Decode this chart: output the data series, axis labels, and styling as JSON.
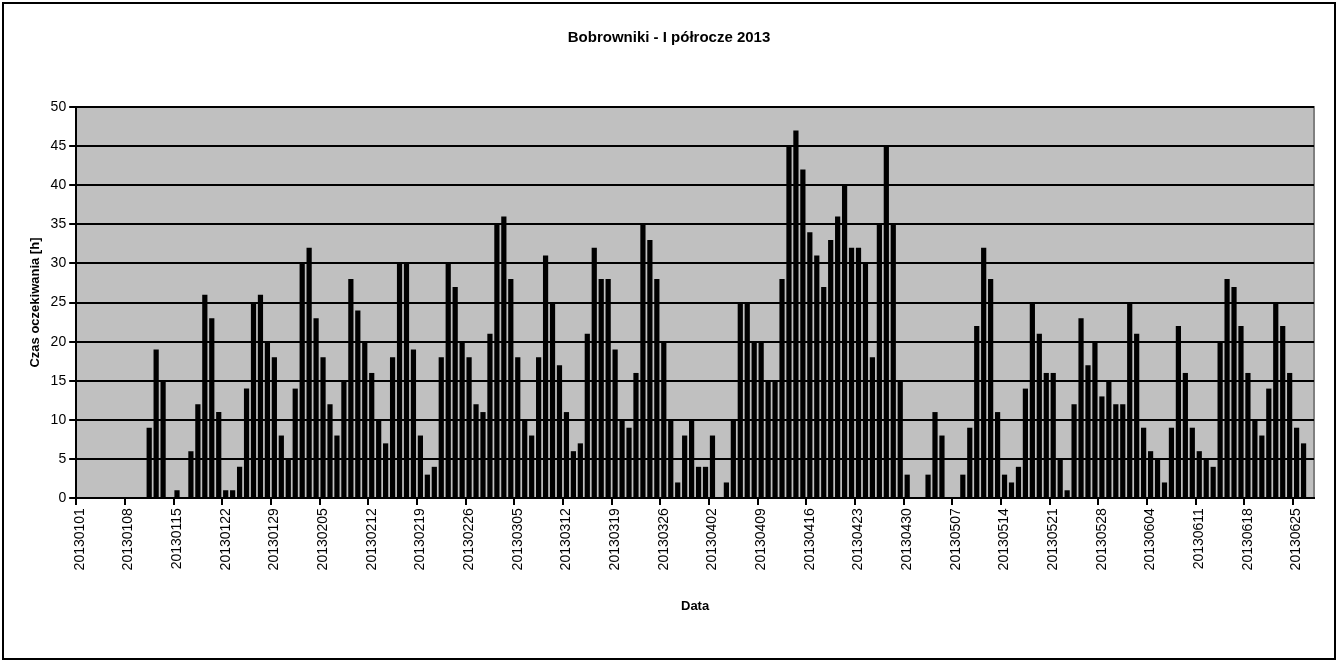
{
  "chart_data": {
    "type": "bar",
    "title": "Bobrowniki - I półrocze 2013",
    "xlabel": "Data",
    "ylabel": "Czas oczekiwania [h]",
    "categories": [
      "20130101",
      null,
      null,
      null,
      null,
      null,
      null,
      "20130108",
      null,
      null,
      null,
      null,
      null,
      null,
      "20130115",
      null,
      null,
      null,
      null,
      null,
      null,
      "20130122",
      null,
      null,
      null,
      null,
      null,
      null,
      "20130129",
      null,
      null,
      null,
      null,
      null,
      null,
      "20130205",
      null,
      null,
      null,
      null,
      null,
      null,
      "20130212",
      null,
      null,
      null,
      null,
      null,
      null,
      "20130219",
      null,
      null,
      null,
      null,
      null,
      null,
      "20130226",
      null,
      null,
      null,
      null,
      null,
      null,
      "20130305",
      null,
      null,
      null,
      null,
      null,
      null,
      "20130312",
      null,
      null,
      null,
      null,
      null,
      null,
      "20130319",
      null,
      null,
      null,
      null,
      null,
      null,
      "20130326",
      null,
      null,
      null,
      null,
      null,
      null,
      "20130402",
      null,
      null,
      null,
      null,
      null,
      null,
      "20130409",
      null,
      null,
      null,
      null,
      null,
      null,
      "20130416",
      null,
      null,
      null,
      null,
      null,
      null,
      "20130423",
      null,
      null,
      null,
      null,
      null,
      null,
      "20130430",
      null,
      null,
      null,
      null,
      null,
      null,
      "20130507",
      null,
      null,
      null,
      null,
      null,
      null,
      "20130514",
      null,
      null,
      null,
      null,
      null,
      null,
      "20130521",
      null,
      null,
      null,
      null,
      null,
      null,
      "20130528",
      null,
      null,
      null,
      null,
      null,
      null,
      "20130604",
      null,
      null,
      null,
      null,
      null,
      null,
      "20130611",
      null,
      null,
      null,
      null,
      null,
      null,
      "20130618",
      null,
      null,
      null,
      null,
      null,
      null,
      "20130625",
      null,
      null
    ],
    "values": [
      0,
      0,
      0,
      0,
      0,
      0,
      0,
      0,
      0,
      0,
      9,
      19,
      15,
      0,
      1,
      0,
      6,
      12,
      26,
      23,
      11,
      1,
      1,
      4,
      14,
      25,
      26,
      20,
      18,
      8,
      5,
      14,
      30,
      32,
      23,
      18,
      12,
      8,
      15,
      28,
      24,
      20,
      16,
      10,
      7,
      18,
      30,
      30,
      19,
      8,
      3,
      4,
      18,
      30,
      27,
      20,
      18,
      12,
      11,
      21,
      35,
      36,
      28,
      18,
      10,
      8,
      18,
      31,
      25,
      17,
      11,
      6,
      7,
      21,
      32,
      28,
      28,
      19,
      10,
      9,
      16,
      35,
      33,
      28,
      20,
      10,
      2,
      8,
      10,
      4,
      4,
      8,
      0,
      2,
      10,
      25,
      25,
      20,
      20,
      15,
      15,
      28,
      45,
      47,
      42,
      34,
      31,
      27,
      33,
      36,
      40,
      32,
      32,
      30,
      18,
      35,
      45,
      35,
      15,
      3,
      0,
      0,
      3,
      11,
      8,
      0,
      0,
      3,
      9,
      22,
      32,
      28,
      11,
      3,
      2,
      4,
      14,
      25,
      21,
      16,
      16,
      5,
      1,
      12,
      23,
      17,
      20,
      13,
      15,
      12,
      12,
      25,
      21,
      9,
      6,
      5,
      2,
      9,
      22,
      16,
      9,
      6,
      5,
      4,
      20,
      28,
      27,
      22,
      16,
      10,
      8,
      14,
      25,
      22,
      16,
      9,
      7,
      0
    ],
    "color": "#000000",
    "ylim": [
      0,
      50
    ],
    "yticks": [
      0,
      5,
      10,
      15,
      20,
      25,
      30,
      35,
      40,
      45,
      50
    ],
    "grid": "y"
  }
}
